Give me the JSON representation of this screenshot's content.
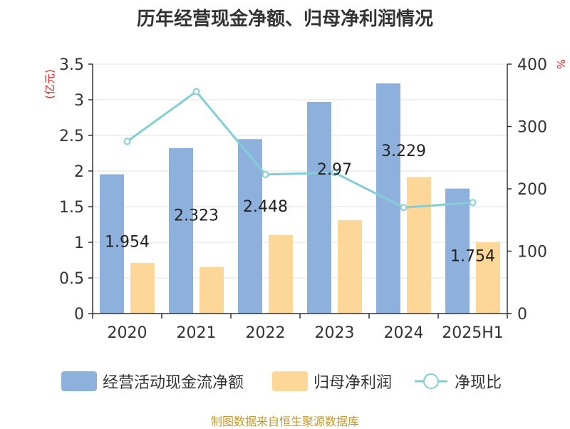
{
  "title": "历年经营现金净额、归母净利润情况",
  "source_note": "制图数据来自恒生聚源数据库",
  "colors": {
    "cash_bar": "#8eb0dc",
    "profit_bar": "#fdd797",
    "ratio_line": "#83ced6",
    "axis": "#333333",
    "grid": "#e0e0e0",
    "unit_red": "#e02020",
    "source": "#c59a2b"
  },
  "chart_data": {
    "type": "bar",
    "categories": [
      "2020",
      "2021",
      "2022",
      "2023",
      "2024",
      "2025H1"
    ],
    "y_left": {
      "label": "(亿元)",
      "ylim": [
        0,
        3.5
      ],
      "ticks": [
        "0",
        "0.5",
        "1",
        "1.5",
        "2",
        "2.5",
        "3",
        "3.5"
      ]
    },
    "y_right": {
      "label": "%",
      "ylim": [
        0,
        400
      ],
      "ticks": [
        "0",
        "100",
        "200",
        "300",
        "400"
      ]
    },
    "series": [
      {
        "name": "经营活动现金流净额",
        "type": "bar",
        "axis": "left",
        "values": [
          1.954,
          2.323,
          2.448,
          2.97,
          3.229,
          1.754
        ],
        "labels": [
          "1.954",
          "2.323",
          "2.448",
          "2.97",
          "3.229",
          "1.754"
        ]
      },
      {
        "name": "归母净利润",
        "type": "bar",
        "axis": "left",
        "values": [
          0.71,
          0.655,
          1.1,
          1.31,
          1.915,
          1.0
        ]
      },
      {
        "name": "净现比",
        "type": "line",
        "axis": "right",
        "values": [
          276,
          356,
          223,
          226,
          170,
          178
        ]
      }
    ],
    "grid": true,
    "legend": "bottom"
  }
}
